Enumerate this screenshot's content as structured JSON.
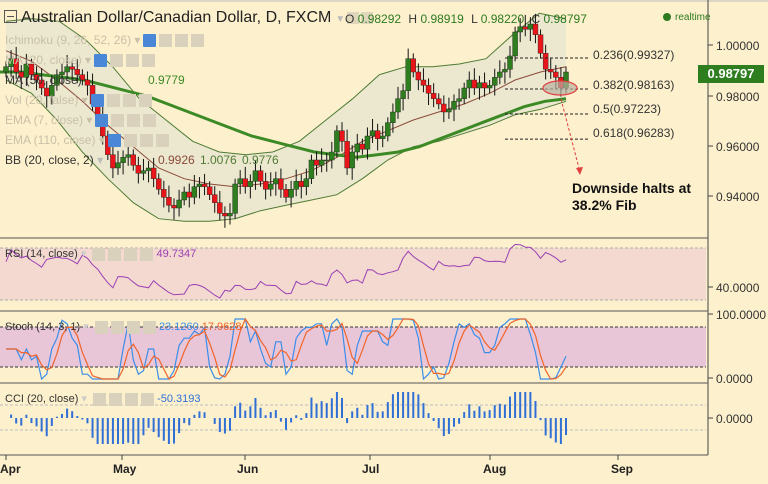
{
  "header": {
    "title": "Australian Dollar/Canadian Dollar, D, FXCM",
    "ohlc": {
      "o_label": "O",
      "o": "0.98292",
      "h_label": "H",
      "h": "0.98919",
      "l_label": "L",
      "l": "0.98220",
      "c_label": "C",
      "c": "0.98797"
    },
    "status": "realtime"
  },
  "legend": {
    "ichimoku": "Ichimoku (9, 26, 52, 26)",
    "ma20": "MA (20, close)",
    "ma50": "MA (50, close)",
    "ma50_value": "0.9779",
    "vol": "Vol (20, false)",
    "ema7": "EMA (7, close)",
    "ema110": "EMA (110, close)",
    "bb": "BB (20, close, 2)",
    "bb_values": [
      "0.9926",
      "1.0076",
      "0.9776"
    ]
  },
  "price_axis": {
    "ticks": [
      "1.00000",
      "0.98000",
      "0.96000",
      "0.94000"
    ],
    "current_price": "0.98797"
  },
  "fib_levels": [
    {
      "label": "0.236(0.99327)",
      "ratio": 0.236,
      "price": 0.99327
    },
    {
      "label": "0.382(0.98163)",
      "ratio": 0.382,
      "price": 0.98163
    },
    {
      "label": "0.5(0.97223)",
      "ratio": 0.5,
      "price": 0.97223
    },
    {
      "label": "0.618(0.96283)",
      "ratio": 0.618,
      "price": 0.96283
    }
  ],
  "annotation": {
    "line1": "Downside halts at",
    "line2": "38.2% Fib"
  },
  "rsi": {
    "label": "RSI (14, close)",
    "value": "49.7347",
    "axis_tick": "40.0000"
  },
  "stoch": {
    "label": "Stoch (14, 3, 1)",
    "k": "23.1260",
    "d": "17.9628",
    "axis_ticks": [
      "100.0000",
      "0.0000"
    ]
  },
  "cci": {
    "label": "CCI (20, close)",
    "value": "-50.3193",
    "axis_tick": "0.0000"
  },
  "time_axis": {
    "months": [
      "Apr",
      "May",
      "Jun",
      "Jul",
      "Aug",
      "Sep"
    ]
  },
  "colors": {
    "bull": "#2e7d1f",
    "bear": "#e8161b",
    "ma50": "#3c8a26",
    "ma20": "#8b4a3a",
    "bb": "#4f7b35",
    "rsi": "#9b3fb5",
    "stoch_k": "#3b8ee8",
    "stoch_d": "#f0642a",
    "cci": "#2f6fd6"
  },
  "chart_data": {
    "type": "candlestick",
    "title": "Australian Dollar/Canadian Dollar, D, FXCM",
    "xlabel": "",
    "ylabel": "",
    "ylim": [
      0.928,
      1.012
    ],
    "x_ticks": [
      "Apr",
      "May",
      "Jun",
      "Jul",
      "Aug",
      "Sep"
    ],
    "close_series": [
      0.99,
      0.993,
      0.988,
      0.986,
      0.991,
      0.987,
      0.985,
      0.982,
      0.979,
      0.983,
      0.987,
      0.988,
      0.99,
      0.989,
      0.987,
      0.985,
      0.983,
      0.976,
      0.972,
      0.964,
      0.957,
      0.952,
      0.954,
      0.956,
      0.957,
      0.953,
      0.95,
      0.951,
      0.952,
      0.948,
      0.944,
      0.941,
      0.938,
      0.937,
      0.94,
      0.943,
      0.941,
      0.945,
      0.946,
      0.945,
      0.942,
      0.939,
      0.935,
      0.934,
      0.935,
      0.946,
      0.948,
      0.945,
      0.947,
      0.951,
      0.947,
      0.944,
      0.946,
      0.948,
      0.944,
      0.941,
      0.944,
      0.947,
      0.945,
      0.948,
      0.955,
      0.953,
      0.955,
      0.955,
      0.958,
      0.966,
      0.962,
      0.952,
      0.958,
      0.961,
      0.959,
      0.964,
      0.966,
      0.963,
      0.964,
      0.969,
      0.973,
      0.978,
      0.981,
      0.993,
      0.988,
      0.985,
      0.983,
      0.98,
      0.978,
      0.976,
      0.973,
      0.974,
      0.977,
      0.978,
      0.982,
      0.985,
      0.982,
      0.984,
      0.982,
      0.983,
      0.986,
      0.988,
      0.989,
      0.994,
      1.003,
      1.005,
      1.004,
      1.006,
      1.002,
      0.995,
      0.989,
      0.988,
      0.986,
      0.982,
      0.988
    ],
    "ma50": [
      0.988,
      0.988,
      0.987,
      0.986,
      0.985,
      0.983,
      0.981,
      0.979,
      0.976,
      0.973,
      0.97,
      0.967,
      0.964,
      0.962,
      0.96,
      0.958,
      0.957,
      0.956,
      0.957,
      0.958,
      0.96,
      0.963,
      0.966,
      0.969,
      0.972,
      0.975,
      0.977,
      0.978
    ],
    "ma20": [
      0.996,
      0.992,
      0.985,
      0.977,
      0.968,
      0.96,
      0.952,
      0.948,
      0.946,
      0.945,
      0.946,
      0.948,
      0.951,
      0.956,
      0.962,
      0.966,
      0.97,
      0.973,
      0.976,
      0.98,
      0.985,
      0.988,
      0.99
    ],
    "bb_upper": [
      1.007,
      1.008,
      1.007,
      1.0,
      0.99,
      0.978,
      0.97,
      0.962,
      0.958,
      0.957,
      0.958,
      0.962,
      0.97,
      0.978,
      0.987,
      0.99,
      0.99,
      0.991,
      0.993,
      1.002,
      1.01,
      1.008
    ],
    "bb_lower": [
      0.985,
      0.98,
      0.97,
      0.958,
      0.948,
      0.939,
      0.933,
      0.932,
      0.932,
      0.933,
      0.936,
      0.938,
      0.94,
      0.942,
      0.948,
      0.955,
      0.96,
      0.962,
      0.965,
      0.968,
      0.972,
      0.974,
      0.977
    ]
  }
}
